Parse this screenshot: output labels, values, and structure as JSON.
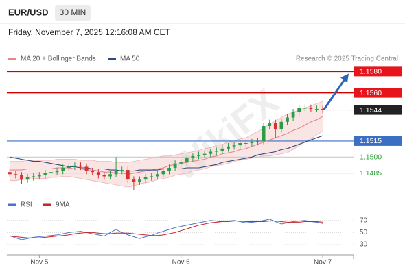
{
  "header": {
    "symbol": "EUR/USD",
    "timeframe": "30 MIN",
    "datetime": "Friday, November 7, 2025 12:16:08 AM CET"
  },
  "chart_data": [
    {
      "type": "candlestick",
      "credit": "Research © 2025 Trading Central",
      "watermark": "WikiFX",
      "categories": [
        null,
        null,
        null,
        null,
        null,
        "Nov 5",
        null,
        null,
        null,
        null,
        null,
        null,
        null,
        null,
        null,
        null,
        null,
        null,
        null,
        null,
        null,
        null,
        null,
        null,
        null,
        null,
        null,
        null,
        null,
        "Nov 6",
        null,
        null,
        null,
        null,
        null,
        null,
        null,
        null,
        null,
        null,
        null,
        null,
        null,
        null,
        null,
        null,
        null,
        null,
        null,
        null,
        null,
        null,
        null,
        "Nov 7"
      ],
      "open": [
        1.1486,
        1.1484,
        1.1483,
        1.1479,
        1.1481,
        1.1482,
        1.1483,
        1.1485,
        1.1486,
        1.1487,
        1.149,
        1.1491,
        1.1492,
        1.1491,
        1.1487,
        1.1486,
        1.1483,
        1.1482,
        1.1484,
        1.1487,
        1.1488,
        1.1479,
        1.1477,
        1.1479,
        1.1481,
        1.1482,
        1.1484,
        1.1487,
        1.149,
        1.1494,
        1.1495,
        1.1499,
        1.1501,
        1.1502,
        1.1503,
        1.1505,
        1.1506,
        1.1508,
        1.151,
        1.1511,
        1.1513,
        1.1513,
        1.1514,
        1.1515,
        1.1529,
        1.1532,
        1.1526,
        1.1533,
        1.1537,
        1.1542,
        1.1546,
        1.1546,
        1.1545,
        1.1545
      ],
      "high": [
        1.1489,
        1.1487,
        1.1486,
        1.1484,
        1.1485,
        1.1486,
        1.1488,
        1.1489,
        1.149,
        1.1493,
        1.1494,
        1.1495,
        1.1495,
        1.1494,
        1.149,
        1.1489,
        1.1486,
        1.1487,
        1.15,
        1.1491,
        1.1491,
        1.1482,
        1.1482,
        1.1484,
        1.1485,
        1.1487,
        1.149,
        1.1493,
        1.1497,
        1.1498,
        1.1502,
        1.1504,
        1.1505,
        1.1506,
        1.1508,
        1.1509,
        1.1511,
        1.1513,
        1.1514,
        1.1516,
        1.1516,
        1.1517,
        1.1518,
        1.1532,
        1.1535,
        1.1535,
        1.1536,
        1.154,
        1.1545,
        1.1549,
        1.1549,
        1.1549,
        1.1548,
        1.1548
      ],
      "low": [
        1.1481,
        1.148,
        1.1475,
        1.1476,
        1.1478,
        1.1479,
        1.148,
        1.1482,
        1.1483,
        1.1484,
        1.1487,
        1.1488,
        1.1488,
        1.1484,
        1.1483,
        1.148,
        1.1479,
        1.1479,
        1.1481,
        1.1484,
        1.1476,
        1.1469,
        1.1474,
        1.1476,
        1.1478,
        1.1479,
        1.1481,
        1.1484,
        1.1487,
        1.1491,
        1.1492,
        1.1496,
        1.1498,
        1.1499,
        1.15,
        1.1502,
        1.1503,
        1.1505,
        1.1507,
        1.1508,
        1.151,
        1.151,
        1.1511,
        1.1512,
        1.1526,
        1.1518,
        1.1523,
        1.153,
        1.1534,
        1.1539,
        1.1543,
        1.1542,
        1.1542,
        1.1541
      ],
      "close": [
        1.1484,
        1.1483,
        1.1479,
        1.1481,
        1.1482,
        1.1483,
        1.1485,
        1.1486,
        1.1487,
        1.149,
        1.1491,
        1.1492,
        1.1491,
        1.1487,
        1.1486,
        1.1483,
        1.1482,
        1.1484,
        1.1487,
        1.1488,
        1.1479,
        1.1477,
        1.1479,
        1.1481,
        1.1482,
        1.1484,
        1.1487,
        1.149,
        1.1494,
        1.1495,
        1.1499,
        1.1501,
        1.1502,
        1.1503,
        1.1505,
        1.1506,
        1.1508,
        1.151,
        1.1511,
        1.1513,
        1.1513,
        1.1514,
        1.1515,
        1.1529,
        1.1532,
        1.1526,
        1.1533,
        1.1537,
        1.1542,
        1.1546,
        1.1546,
        1.1545,
        1.1545,
        1.1544
      ],
      "up_color": "#2a9d47",
      "down_color": "#d8322e",
      "ylim": [
        1.1465,
        1.1586
      ],
      "series": [
        {
          "name": "MA 20 + Bollinger Bands",
          "color": "#e8878e",
          "band_color": "#f7d3d3",
          "values": [
            1.1488,
            1.1488,
            1.1488,
            1.1489,
            1.1489,
            1.1489,
            1.1489,
            1.1489,
            1.149,
            1.149,
            1.149,
            1.1489,
            1.1489,
            1.1488,
            1.1488,
            1.1487,
            1.1486,
            1.1486,
            1.1485,
            1.1485,
            1.1484,
            1.1485,
            1.1486,
            1.1487,
            1.1488,
            1.1489,
            1.149,
            1.1492,
            1.1493,
            1.1494,
            1.1495,
            1.1496,
            1.1497,
            1.1498,
            1.15,
            1.1501,
            1.1503,
            1.1504,
            1.1505,
            1.1507,
            1.1508,
            1.151,
            1.1512,
            1.1514,
            1.1516,
            1.1518,
            1.152,
            1.1522,
            1.1525,
            1.1527,
            1.153,
            1.1533,
            1.1535,
            1.1538
          ],
          "upper": [
            1.1496,
            1.1496,
            1.1496,
            1.1497,
            1.1497,
            1.1497,
            1.1497,
            1.1497,
            1.1498,
            1.1498,
            1.1498,
            1.1498,
            1.1497,
            1.1497,
            1.1497,
            1.1496,
            1.1496,
            1.1496,
            1.1495,
            1.1495,
            1.1495,
            1.1496,
            1.1497,
            1.1498,
            1.1499,
            1.15,
            1.1501,
            1.1501,
            1.1502,
            1.1503,
            1.1504,
            1.1505,
            1.1506,
            1.1508,
            1.1509,
            1.1511,
            1.1512,
            1.1514,
            1.1515,
            1.1517,
            1.1518,
            1.1521,
            1.1524,
            1.1527,
            1.1531,
            1.1534,
            1.1537,
            1.154,
            1.1542,
            1.1544,
            1.1546,
            1.1548,
            1.155,
            1.1552
          ],
          "lower": [
            1.1478,
            1.1478,
            1.1479,
            1.1479,
            1.148,
            1.148,
            1.148,
            1.1481,
            1.1481,
            1.1482,
            1.1482,
            1.1481,
            1.148,
            1.1479,
            1.1478,
            1.1477,
            1.1476,
            1.1475,
            1.1474,
            1.1473,
            1.1472,
            1.1473,
            1.1475,
            1.1476,
            1.1477,
            1.1479,
            1.148,
            1.1481,
            1.1483,
            1.1484,
            1.1485,
            1.1487,
            1.1488,
            1.1489,
            1.1491,
            1.1492,
            1.1493,
            1.1494,
            1.1496,
            1.1497,
            1.1498,
            1.1499,
            1.15,
            1.1501,
            1.1501,
            1.1502,
            1.1503,
            1.1504,
            1.1507,
            1.1511,
            1.1514,
            1.1517,
            1.1521,
            1.1524
          ]
        },
        {
          "name": "MA 50",
          "color": "#2d4b80",
          "values": [
            1.15,
            1.1499,
            1.1498,
            1.1497,
            1.1496,
            1.1496,
            1.1495,
            1.1494,
            1.1493,
            1.1492,
            1.1491,
            1.1491,
            1.149,
            1.149,
            1.1489,
            1.1489,
            1.1489,
            1.1488,
            1.1488,
            1.1487,
            1.1487,
            1.1487,
            1.1488,
            1.1488,
            1.1488,
            1.1488,
            1.1489,
            1.1489,
            1.1489,
            1.1489,
            1.149,
            1.149,
            1.149,
            1.1491,
            1.1492,
            1.1493,
            1.1495,
            1.1496,
            1.1497,
            1.1498,
            1.1499,
            1.15,
            1.1502,
            1.1503,
            1.1504,
            1.1505,
            1.1507,
            1.1508,
            1.151,
            1.1512,
            1.1514,
            1.1516,
            1.1518,
            1.152
          ]
        }
      ],
      "levels": [
        {
          "value": 1.158,
          "label": "1.1580",
          "line_color": "#d40000",
          "line_style": "solid",
          "label_background": "#e8141c",
          "label_color": "#ffffff"
        },
        {
          "value": 1.156,
          "label": "1.1560",
          "line_color": "#d40000",
          "line_style": "solid",
          "label_background": "#e8141c",
          "label_color": "#ffffff"
        },
        {
          "value": 1.1544,
          "label": "1.1544",
          "line_color": "#8a8a8a",
          "line_style": "dotted",
          "label_background": "#222222",
          "label_color": "#ffffff"
        },
        {
          "value": 1.1515,
          "label": "1.1515",
          "line_color": "#3a6fc4",
          "line_style": "solid",
          "label_background": "#3a6fc4",
          "label_color": "#ffffff"
        },
        {
          "value": 1.15,
          "label": "1.1500",
          "line_color": "#c9c9c9",
          "line_style": "solid",
          "label_color": "#2e9e3a"
        },
        {
          "value": 1.1485,
          "label": "1.1485",
          "line_color": "#c9c9c9",
          "line_style": "solid",
          "label_color": "#2e9e3a"
        }
      ]
    },
    {
      "type": "line",
      "ylim": [
        13,
        81
      ],
      "yticks": [
        30,
        50,
        70
      ],
      "grid": true,
      "series": [
        {
          "name": "RSI",
          "color": "#4a72c8",
          "values": [
            45,
            41,
            38,
            40,
            42,
            43,
            44,
            45,
            46,
            48,
            50,
            51,
            52,
            50,
            48,
            46,
            44,
            50,
            55,
            50,
            46,
            43,
            40,
            43,
            45,
            49,
            52,
            55,
            58,
            60,
            62,
            64,
            66,
            68,
            70,
            69,
            68,
            69,
            70,
            68,
            66,
            67,
            68,
            70,
            72,
            68,
            64,
            66,
            68,
            69,
            70,
            68,
            67,
            65
          ]
        },
        {
          "name": "9MA",
          "color": "#c4262a",
          "values": [
            44,
            43,
            42,
            41,
            41,
            41,
            42,
            43,
            44,
            45,
            46,
            48,
            49,
            50,
            50,
            49,
            48,
            48,
            49,
            49,
            49,
            48,
            47,
            46,
            45,
            45,
            46,
            48,
            50,
            53,
            56,
            59,
            62,
            64,
            66,
            67,
            68,
            68,
            69,
            69,
            68,
            68,
            68,
            68,
            69,
            69,
            68,
            67,
            67,
            67,
            68,
            68,
            68,
            67
          ]
        }
      ]
    }
  ]
}
